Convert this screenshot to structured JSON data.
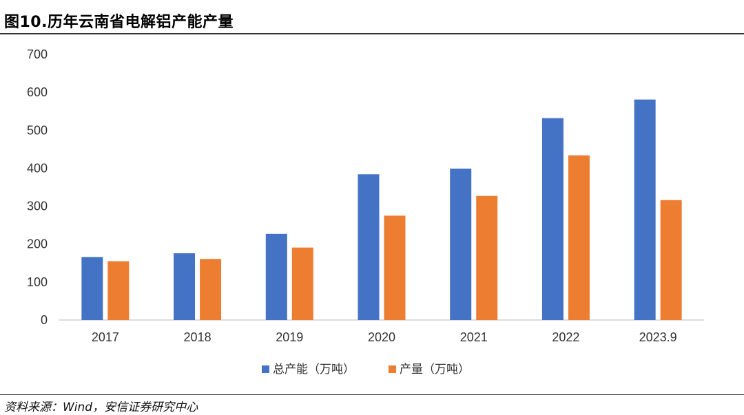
{
  "header": {
    "title": "图10.历年云南省电解铝产能产量"
  },
  "footer": {
    "source": "资料来源：Wind，安信证券研究中心"
  },
  "chart_data": {
    "type": "bar",
    "categories": [
      "2017",
      "2018",
      "2019",
      "2020",
      "2021",
      "2022",
      "2023.9"
    ],
    "series": [
      {
        "name": "总产能（万吨）",
        "color": "#4472C4",
        "values": [
          166,
          176,
          227,
          384,
          399,
          532,
          581
        ]
      },
      {
        "name": "产量（万吨）",
        "color": "#ED7D31",
        "values": [
          155,
          161,
          191,
          275,
          327,
          434,
          316
        ]
      }
    ],
    "ylim": [
      0,
      700
    ],
    "yticks": [
      0,
      100,
      200,
      300,
      400,
      500,
      600,
      700
    ],
    "grid": false,
    "legend": "bottom-center"
  }
}
